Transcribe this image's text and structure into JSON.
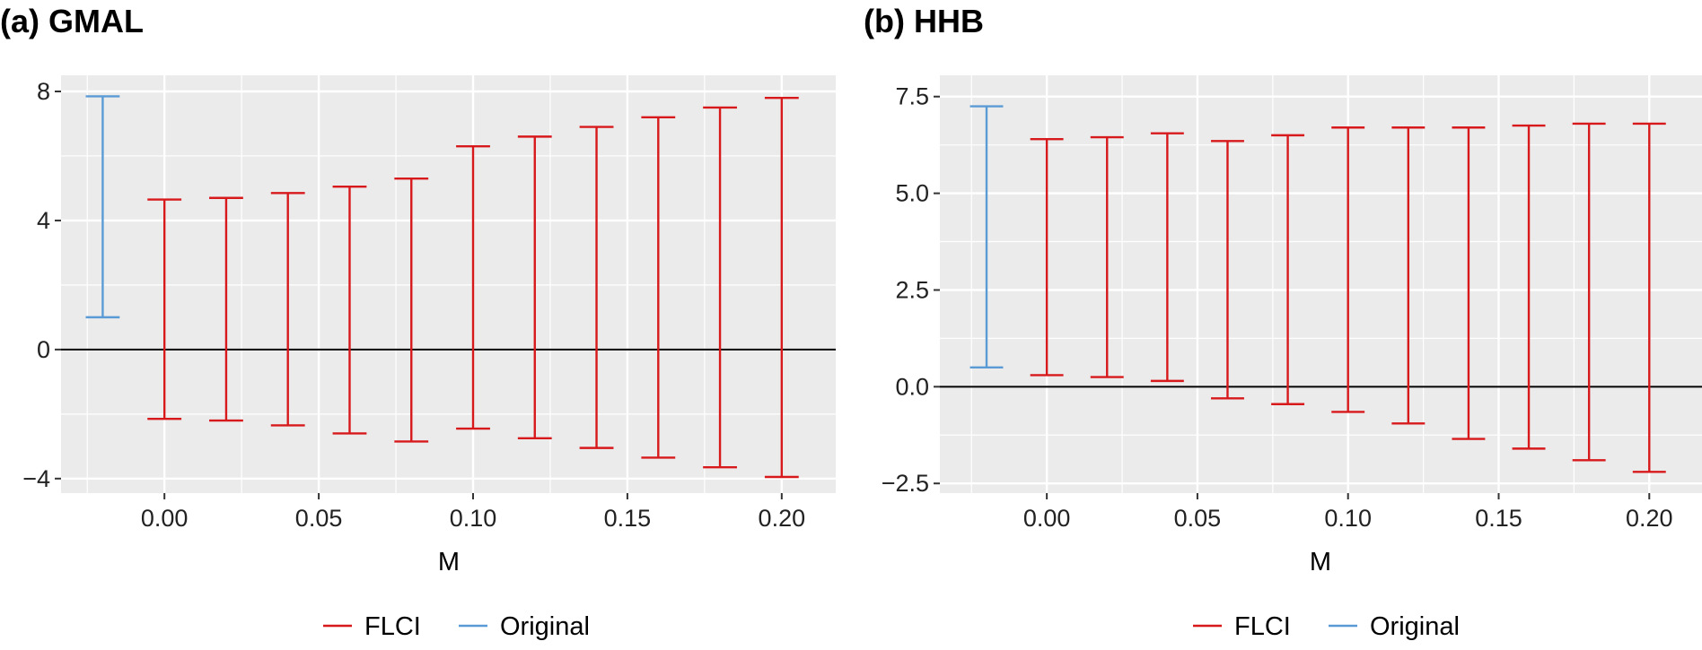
{
  "colors": {
    "flci": "#d7191c",
    "original": "#5b9bd5",
    "panel_bg": "#ebebeb",
    "grid": "#ffffff",
    "zero_line": "#000000"
  },
  "chart_data": [
    {
      "type": "errorbar",
      "title": "(a) GMAL",
      "xlabel": "M",
      "ylabel": "",
      "xlim": [
        -0.0335,
        0.2175
      ],
      "ylim": [
        -4.45,
        8.5
      ],
      "x_ticks": [
        0.0,
        0.05,
        0.1,
        0.15,
        0.2
      ],
      "x_tick_labels": [
        "0.00",
        "0.05",
        "0.10",
        "0.15",
        "0.20"
      ],
      "y_ticks": [
        -4,
        0,
        4,
        8
      ],
      "y_tick_labels": [
        "−4",
        "0",
        "4",
        "8"
      ],
      "grid": true,
      "reference_line": 0,
      "legend": {
        "position": "bottom",
        "entries": [
          "FLCI",
          "Original"
        ]
      },
      "series": [
        {
          "name": "FLCI",
          "points": [
            {
              "x": 0.0,
              "low": -2.15,
              "high": 4.65
            },
            {
              "x": 0.02,
              "low": -2.2,
              "high": 4.7
            },
            {
              "x": 0.04,
              "low": -2.35,
              "high": 4.85
            },
            {
              "x": 0.06,
              "low": -2.6,
              "high": 5.05
            },
            {
              "x": 0.08,
              "low": -2.85,
              "high": 5.3
            },
            {
              "x": 0.1,
              "low": -2.45,
              "high": 6.3
            },
            {
              "x": 0.12,
              "low": -2.75,
              "high": 6.6
            },
            {
              "x": 0.14,
              "low": -3.05,
              "high": 6.9
            },
            {
              "x": 0.16,
              "low": -3.35,
              "high": 7.2
            },
            {
              "x": 0.18,
              "low": -3.65,
              "high": 7.5
            },
            {
              "x": 0.2,
              "low": -3.95,
              "high": 7.8
            }
          ]
        },
        {
          "name": "Original",
          "points": [
            {
              "x": -0.02,
              "low": 1.0,
              "high": 7.85
            }
          ]
        }
      ]
    },
    {
      "type": "errorbar",
      "title": "(b) HHB",
      "xlabel": "M",
      "ylabel": "",
      "xlim": [
        -0.0355,
        0.2175
      ],
      "ylim": [
        -2.75,
        8.05
      ],
      "x_ticks": [
        0.0,
        0.05,
        0.1,
        0.15,
        0.2
      ],
      "x_tick_labels": [
        "0.00",
        "0.05",
        "0.10",
        "0.15",
        "0.20"
      ],
      "y_ticks": [
        -2.5,
        0.0,
        2.5,
        5.0,
        7.5
      ],
      "y_tick_labels": [
        "−2.5",
        "0.0",
        "2.5",
        "5.0",
        "7.5"
      ],
      "grid": true,
      "reference_line": 0,
      "legend": {
        "position": "bottom",
        "entries": [
          "FLCI",
          "Original"
        ]
      },
      "series": [
        {
          "name": "FLCI",
          "points": [
            {
              "x": 0.0,
              "low": 0.3,
              "high": 6.4
            },
            {
              "x": 0.02,
              "low": 0.25,
              "high": 6.45
            },
            {
              "x": 0.04,
              "low": 0.15,
              "high": 6.55
            },
            {
              "x": 0.06,
              "low": -0.3,
              "high": 6.35
            },
            {
              "x": 0.08,
              "low": -0.45,
              "high": 6.5
            },
            {
              "x": 0.1,
              "low": -0.65,
              "high": 6.7
            },
            {
              "x": 0.12,
              "low": -0.95,
              "high": 6.7
            },
            {
              "x": 0.14,
              "low": -1.35,
              "high": 6.7
            },
            {
              "x": 0.16,
              "low": -1.6,
              "high": 6.75
            },
            {
              "x": 0.18,
              "low": -1.9,
              "high": 6.8
            },
            {
              "x": 0.2,
              "low": -2.2,
              "high": 6.8
            }
          ]
        },
        {
          "name": "Original",
          "points": [
            {
              "x": -0.02,
              "low": 0.5,
              "high": 7.25
            }
          ]
        }
      ]
    }
  ]
}
